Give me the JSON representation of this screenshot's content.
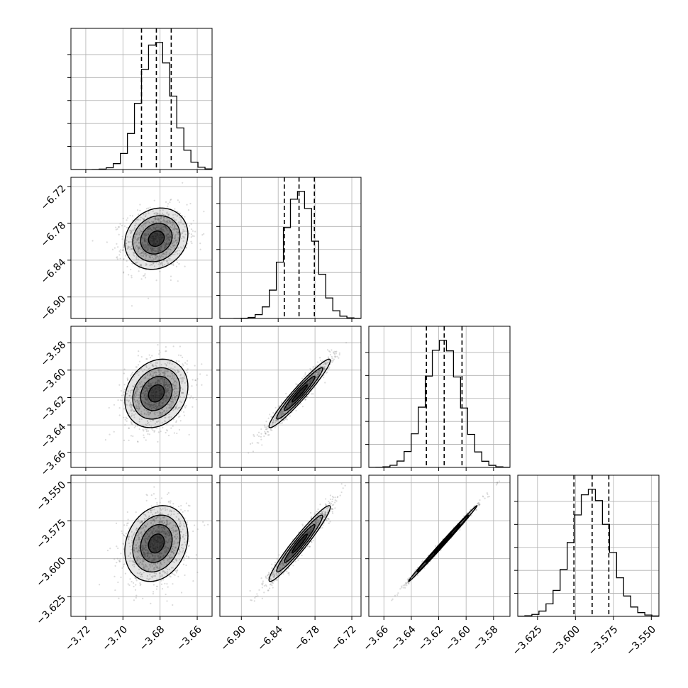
{
  "chart_data": {
    "type": "corner",
    "parameters": [
      {
        "mean": -3.682,
        "sd": 0.0085,
        "range": [
          -3.728,
          -3.652
        ],
        "ticks": [
          "−3.72",
          "−3.70",
          "−3.68",
          "−3.66"
        ],
        "tick_values": [
          -3.72,
          -3.7,
          -3.68,
          -3.66
        ],
        "quantiles": [
          -3.69,
          -3.682,
          -3.674
        ]
      },
      {
        "mean": -6.805,
        "sd": 0.025,
        "range": [
          -6.935,
          -6.705
        ],
        "ticks": [
          "−6.90",
          "−6.84",
          "−6.78",
          "−6.72"
        ],
        "tick_values": [
          -6.9,
          -6.84,
          -6.78,
          -6.72
        ],
        "quantiles": [
          -6.83,
          -6.806,
          -6.781
        ]
      },
      {
        "mean": -3.617,
        "sd": 0.0125,
        "range": [
          -3.671,
          -3.568
        ],
        "ticks": [
          "−3.66",
          "−3.64",
          "−3.62",
          "−3.60",
          "−3.58"
        ],
        "tick_values": [
          -3.66,
          -3.64,
          -3.62,
          -3.6,
          -3.58
        ],
        "quantiles": [
          -3.629,
          -3.616,
          -3.603
        ]
      },
      {
        "mean": -3.59,
        "sd": 0.0125,
        "range": [
          -3.638,
          -3.545
        ],
        "ticks": [
          "−3.625",
          "−3.600",
          "−3.575",
          "−3.550"
        ],
        "tick_values": [
          -3.625,
          -3.6,
          -3.575,
          -3.55
        ],
        "quantiles": [
          -3.601,
          -3.589,
          -3.578
        ]
      }
    ],
    "correlations": [
      [
        1.0,
        0.15,
        0.2,
        0.2
      ],
      [
        0.15,
        1.0,
        0.96,
        0.96
      ],
      [
        0.2,
        0.96,
        1.0,
        0.997
      ],
      [
        0.2,
        0.96,
        0.997,
        1.0
      ]
    ],
    "histogram_bins": 20,
    "contour_levels": [
      "0.5σ",
      "1σ",
      "1.5σ",
      "2σ"
    ],
    "grid": true,
    "colors": {
      "line": "#000000",
      "grid": "#b0b0b0",
      "points": "#888888",
      "shade": "#000000"
    }
  }
}
